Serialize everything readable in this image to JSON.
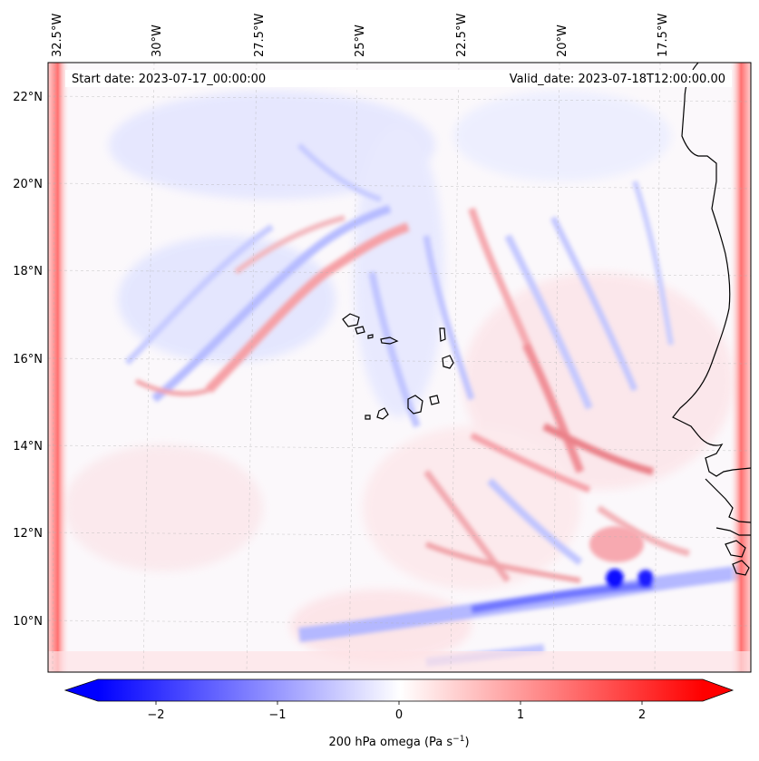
{
  "header": {
    "start_date": "Start date: 2023-07-17_00:00:00",
    "valid_date": "Valid_date: 2023-07-18T12:00:00.00"
  },
  "map": {
    "lon_labels": [
      "32.5°W",
      "30°W",
      "27.5°W",
      "25°W",
      "22.5°W",
      "20°W",
      "17.5°W"
    ],
    "lat_labels": [
      "22°N",
      "20°N",
      "18°N",
      "16°N",
      "14°N",
      "12°N",
      "10°N"
    ],
    "field_name": "200 hPa omega",
    "gridlines": true
  },
  "colorbar": {
    "ticks": [
      "−2",
      "−1",
      "0",
      "1",
      "2"
    ],
    "tick_values": [
      -2,
      -1,
      0,
      1,
      2
    ],
    "range": [
      -2.6,
      2.6
    ],
    "label_main": "200 hPa omega (Pa s",
    "label_exp": "−1",
    "label_close": ")",
    "cmap": "bwr",
    "color_low": "#0000ff",
    "color_mid": "#ffffff",
    "color_high": "#ff0000",
    "extend": "both"
  }
}
